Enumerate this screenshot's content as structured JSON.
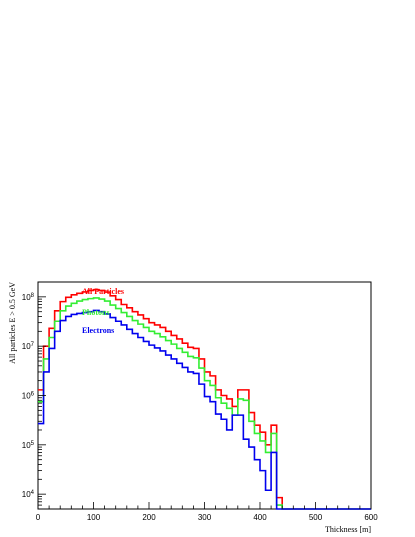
{
  "chart_data": {
    "type": "line",
    "xlabel": "Thickness [m]",
    "ylabel": "All particles E > 0.5 GeV",
    "y_scale": "log",
    "xlim": [
      0,
      600
    ],
    "ylim": [
      5000,
      200000000
    ],
    "x_ticks": [
      0,
      100,
      200,
      300,
      400,
      500,
      600
    ],
    "x_tick_labels": [
      "0",
      "100",
      "200",
      "300",
      "400",
      "500",
      "600"
    ],
    "y_ticks": [
      10000,
      100000,
      1000000,
      10000000,
      100000000
    ],
    "y_tick_labels": [
      {
        "base": "10",
        "exp": "4"
      },
      {
        "base": "10",
        "exp": "5"
      },
      {
        "base": "10",
        "exp": "6"
      },
      {
        "base": "10",
        "exp": "7"
      },
      {
        "base": "10",
        "exp": "8"
      }
    ],
    "grid": false,
    "bin_width": 10,
    "x": [
      0,
      10,
      20,
      30,
      40,
      50,
      60,
      70,
      80,
      90,
      100,
      110,
      120,
      130,
      140,
      150,
      160,
      170,
      180,
      190,
      200,
      210,
      220,
      230,
      240,
      250,
      260,
      270,
      280,
      290,
      300,
      310,
      320,
      330,
      340,
      350,
      360,
      370,
      380,
      390,
      400,
      410,
      420,
      430,
      440,
      450,
      460,
      470,
      480,
      490,
      500,
      510,
      520,
      530,
      540,
      550,
      560,
      570,
      580,
      590
    ],
    "series": [
      {
        "name": "All Particles",
        "color": "#ff0000",
        "values": [
          1300000,
          10000000,
          23000000,
          52000000,
          80000000,
          98000000,
          110000000,
          118000000,
          126000000,
          135000000,
          140000000,
          135000000,
          125000000,
          105000000,
          88000000,
          70000000,
          60000000,
          50000000,
          43000000,
          36000000,
          30000000,
          27000000,
          24000000,
          20000000,
          16500000,
          14000000,
          11500000,
          9500000,
          9000000,
          5500000,
          3000000,
          2500000,
          1300000,
          1000000,
          850000,
          600000,
          1300000,
          1300000,
          450000,
          250000,
          180000,
          100000,
          250000,
          8500,
          0,
          0,
          0,
          0,
          0,
          0,
          0,
          0,
          0,
          0,
          0,
          0,
          0,
          0,
          0,
          0
        ]
      },
      {
        "name": "Photons",
        "color": "#33ee33",
        "values": [
          750000,
          5500000,
          15000000,
          32000000,
          52000000,
          65000000,
          74000000,
          82000000,
          88000000,
          92000000,
          95000000,
          90000000,
          82000000,
          68000000,
          58000000,
          48000000,
          40000000,
          33000000,
          28000000,
          24000000,
          20000000,
          18000000,
          15500000,
          13000000,
          11000000,
          9000000,
          7500000,
          6200000,
          5800000,
          3600000,
          2000000,
          1600000,
          900000,
          700000,
          550000,
          400000,
          850000,
          800000,
          300000,
          170000,
          120000,
          70000,
          170000,
          6000,
          0,
          0,
          0,
          0,
          0,
          0,
          0,
          0,
          0,
          0,
          0,
          0,
          0,
          0,
          0,
          0
        ]
      },
      {
        "name": "Electrons",
        "color": "#0000ee",
        "values": [
          270000,
          3000000,
          9000000,
          20000000,
          33000000,
          40000000,
          44000000,
          46000000,
          48000000,
          50000000,
          53000000,
          50000000,
          45000000,
          38000000,
          32000000,
          27000000,
          22000000,
          18000000,
          15000000,
          12500000,
          10500000,
          9200000,
          8000000,
          6600000,
          5500000,
          4500000,
          3700000,
          3000000,
          2800000,
          1700000,
          950000,
          750000,
          420000,
          330000,
          200000,
          400000,
          400000,
          130000,
          90000,
          50000,
          30000,
          12000,
          70000,
          5000,
          0,
          0,
          0,
          0,
          0,
          0,
          0,
          0,
          0,
          0,
          0,
          0,
          0,
          0,
          0,
          0
        ]
      }
    ]
  }
}
